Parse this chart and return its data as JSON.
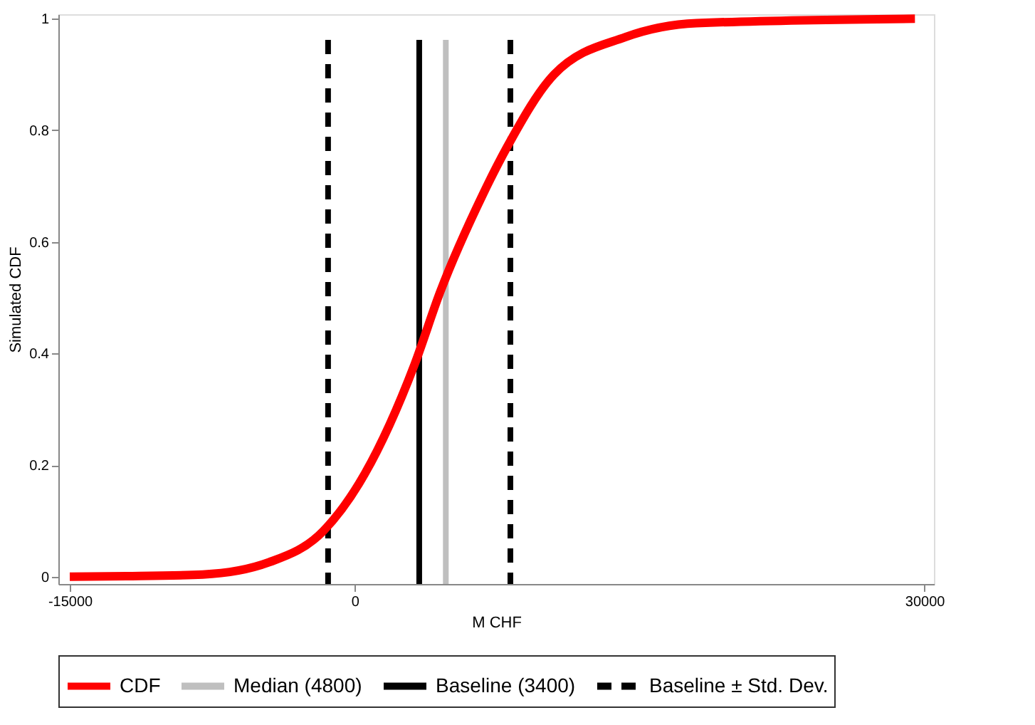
{
  "chart_data": {
    "type": "line",
    "xlabel": "M CHF",
    "ylabel": "Simulated CDF",
    "x": [
      -15000,
      -12000,
      -8000,
      -4500,
      -1650,
      525,
      3150,
      4500,
      6750,
      8025,
      10500,
      14250,
      18000,
      29500
    ],
    "series": [
      {
        "name": "CDF",
        "color": "#ff0000",
        "values": [
          0,
          0.001,
          0.004,
          0.026,
          0.082,
          0.184,
          0.38,
          0.51,
          0.685,
          0.77,
          0.9,
          0.967,
          0.992,
          1.0
        ]
      }
    ],
    "ref_lines": [
      {
        "axis": "x",
        "value": 4800,
        "label": "Median (4800)",
        "color": "#bfbfbf",
        "line_style": "solid"
      },
      {
        "axis": "x",
        "value": 3400,
        "label": "Baseline (3400)",
        "color": "#000000",
        "line_style": "solid"
      },
      {
        "axis": "x",
        "value": -1400,
        "label": "Baseline ± Std. Dev.",
        "color": "#000000",
        "line_style": "dashed"
      },
      {
        "axis": "x",
        "value": 8200,
        "label": null,
        "color": "#000000",
        "line_style": "dashed"
      }
    ],
    "xlim": [
      -15600,
      30500
    ],
    "xticks": [
      -15000,
      0,
      30000
    ],
    "ylim": [
      -0.013,
      1.008
    ],
    "yticks": [
      0,
      0.2,
      0.4,
      0.6,
      0.8,
      1
    ],
    "grid": false,
    "legend": "bottom",
    "line_style": "solid",
    "marker": "none"
  }
}
